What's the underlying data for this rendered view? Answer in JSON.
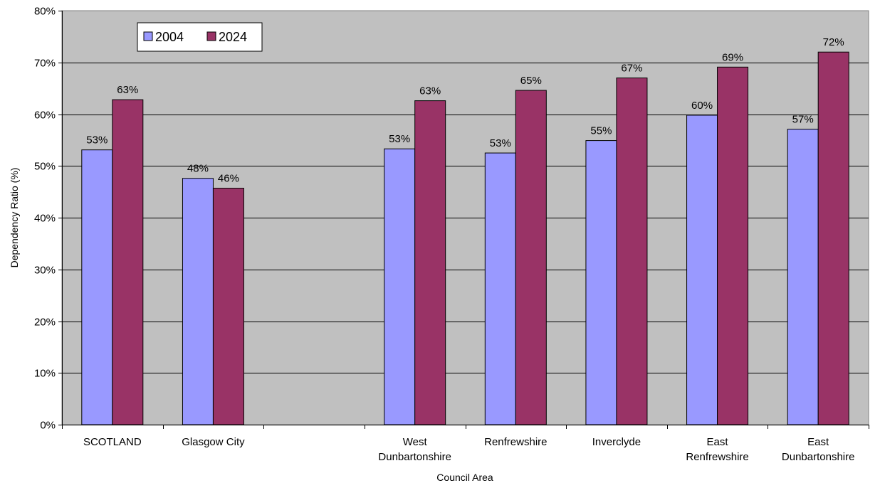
{
  "chart_data": {
    "type": "bar",
    "title": "",
    "xlabel": "Council Area",
    "ylabel": "Dependency Ratio (%)",
    "ylim": [
      0,
      80
    ],
    "ytick_step": 10,
    "ytick_suffix": "%",
    "grid": true,
    "legend_position": "top-left",
    "categories": [
      [
        "SCOTLAND"
      ],
      [
        "Glasgow City"
      ],
      [
        ""
      ],
      [
        "West",
        "Dunbartonshire"
      ],
      [
        "Renfrewshire"
      ],
      [
        "Inverclyde"
      ],
      [
        "East",
        "Renfrewshire"
      ],
      [
        "East",
        "Dunbartonshire"
      ]
    ],
    "series": [
      {
        "name": "2004",
        "color": "#9999ff",
        "values": [
          53.1,
          47.6,
          null,
          53.3,
          52.5,
          54.9,
          59.8,
          57.1
        ],
        "labels": [
          "53%",
          "48%",
          "",
          "53%",
          "53%",
          "55%",
          "60%",
          "57%"
        ]
      },
      {
        "name": "2024",
        "color": "#993366",
        "values": [
          62.8,
          45.7,
          null,
          62.6,
          64.6,
          67.0,
          69.1,
          72.0
        ],
        "labels": [
          "63%",
          "46%",
          "",
          "63%",
          "65%",
          "67%",
          "69%",
          "72%"
        ]
      }
    ],
    "plot_background": "#c0c0c0"
  }
}
